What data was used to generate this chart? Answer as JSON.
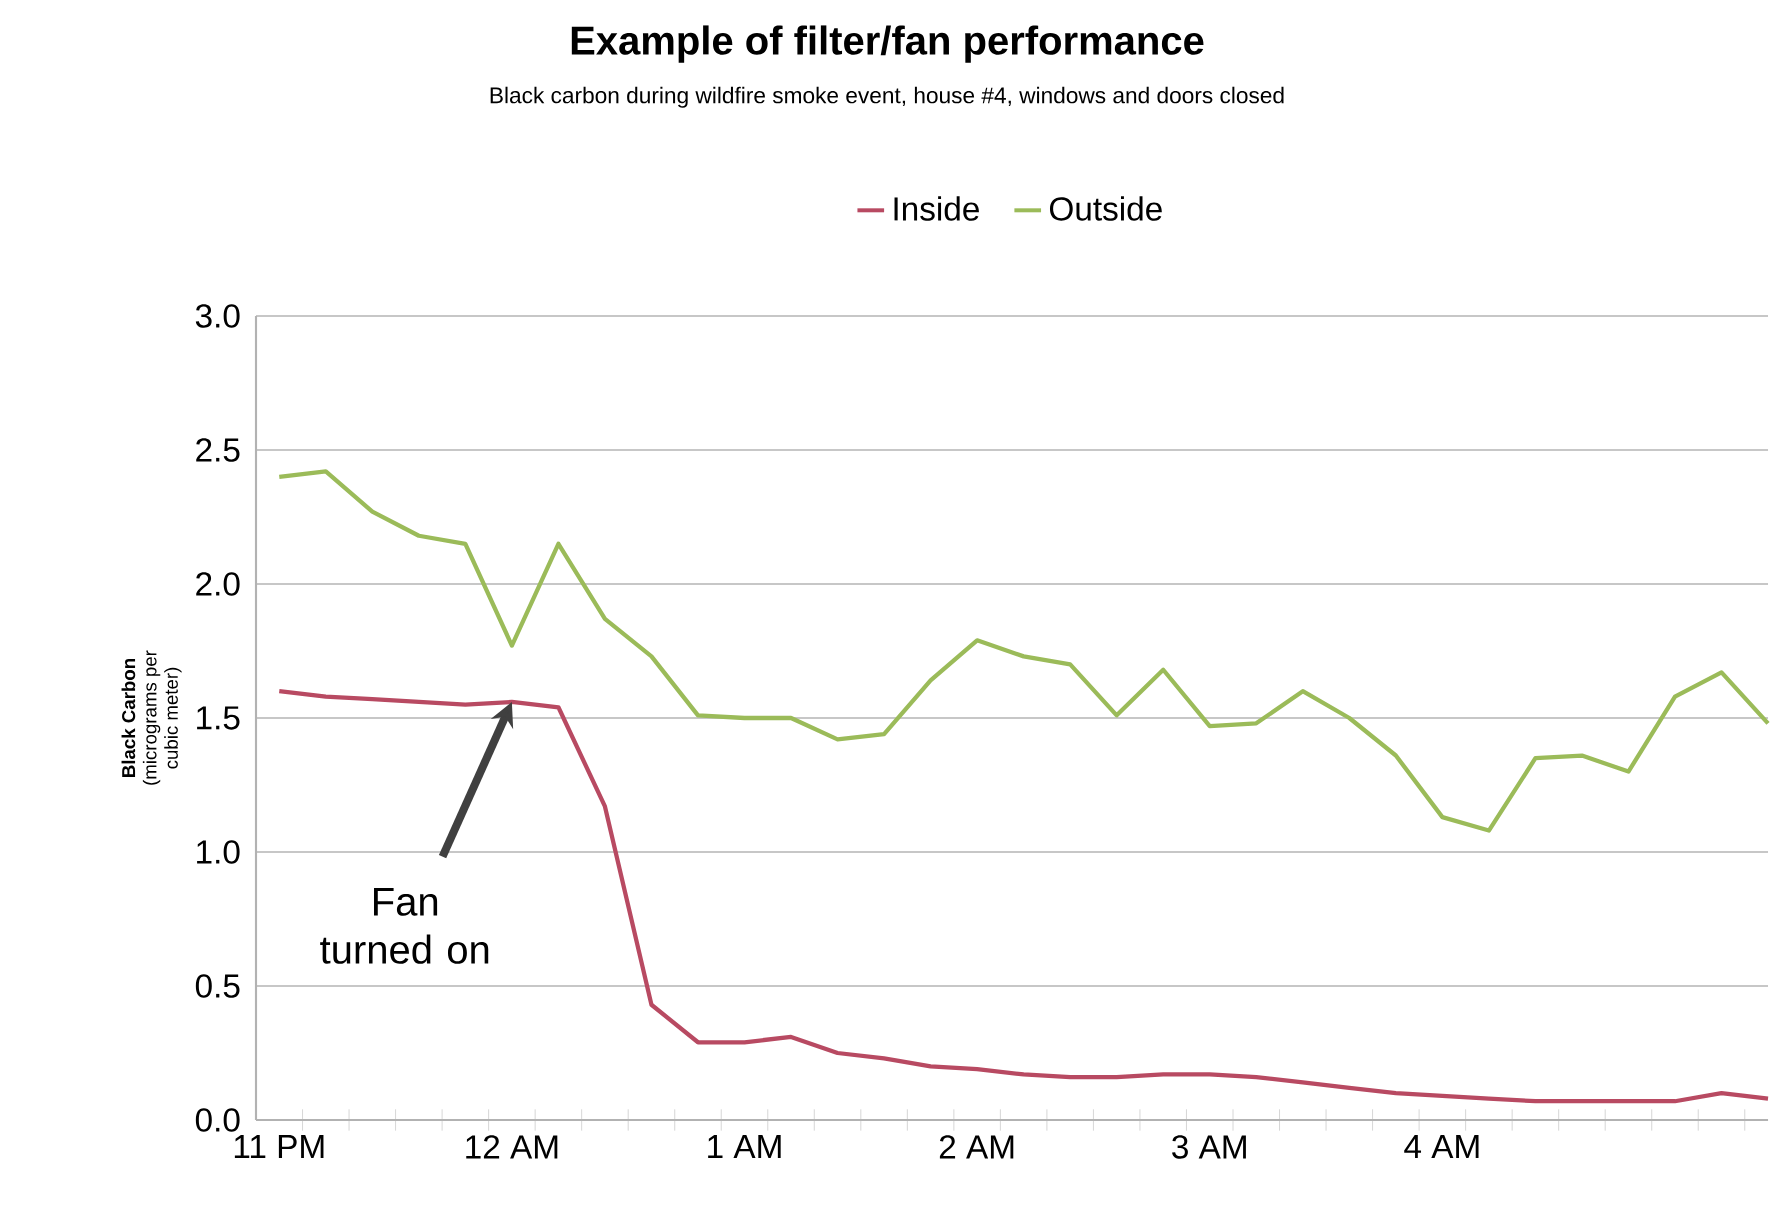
{
  "chart_data": {
    "type": "line",
    "title": "Example of filter/fan performance",
    "subtitle": "Black carbon during wildfire smoke event, house #4, windows and doors closed",
    "ylabel": "**Black Carbon** (micrograms per cubic meter)",
    "categories": [
      "11 PM",
      null,
      null,
      null,
      null,
      "12 AM",
      null,
      null,
      null,
      null,
      "1 AM",
      null,
      null,
      null,
      null,
      "2 AM",
      null,
      null,
      null,
      null,
      "3 AM",
      null,
      null,
      null,
      null,
      "4 AM",
      null,
      null,
      null,
      null,
      null,
      null,
      null
    ],
    "series": [
      {
        "name": "Inside",
        "color": "#b84a62",
        "values": [
          1.6,
          1.58,
          1.57,
          1.56,
          1.55,
          1.56,
          1.54,
          1.17,
          0.43,
          0.29,
          0.29,
          0.31,
          0.25,
          0.23,
          0.2,
          0.19,
          0.17,
          0.16,
          0.16,
          0.17,
          0.17,
          0.16,
          0.14,
          0.12,
          0.1,
          0.09,
          0.08,
          0.07,
          0.07,
          0.07,
          0.07,
          0.1,
          0.08
        ]
      },
      {
        "name": "Outside",
        "color": "#9bbb59",
        "values": [
          2.4,
          2.42,
          2.27,
          2.18,
          2.15,
          1.77,
          2.15,
          1.87,
          1.73,
          1.51,
          1.5,
          1.5,
          1.42,
          1.44,
          1.64,
          1.79,
          1.73,
          1.7,
          1.51,
          1.68,
          1.47,
          1.48,
          1.6,
          1.5,
          1.36,
          1.13,
          1.08,
          1.35,
          1.36,
          1.3,
          1.58,
          1.67,
          1.48
        ]
      }
    ],
    "ylim": [
      0,
      3
    ],
    "yticks": [
      {
        "value": 0,
        "label": "0.0"
      },
      {
        "value": 0.5,
        "label": "0.5"
      },
      {
        "value": 1,
        "label": "1.0"
      },
      {
        "value": 1.5,
        "label": "1.5"
      },
      {
        "value": 2,
        "label": "2.0"
      },
      {
        "value": 2.5,
        "label": "2.5"
      },
      {
        "value": 3,
        "label": "3.0"
      }
    ],
    "grid": "y",
    "legend": "top",
    "marker": "none",
    "line_style": "solid",
    "annotations": [
      {
        "text": "Fan turned on",
        "x": "12 AM",
        "y": 1.56
      }
    ]
  }
}
